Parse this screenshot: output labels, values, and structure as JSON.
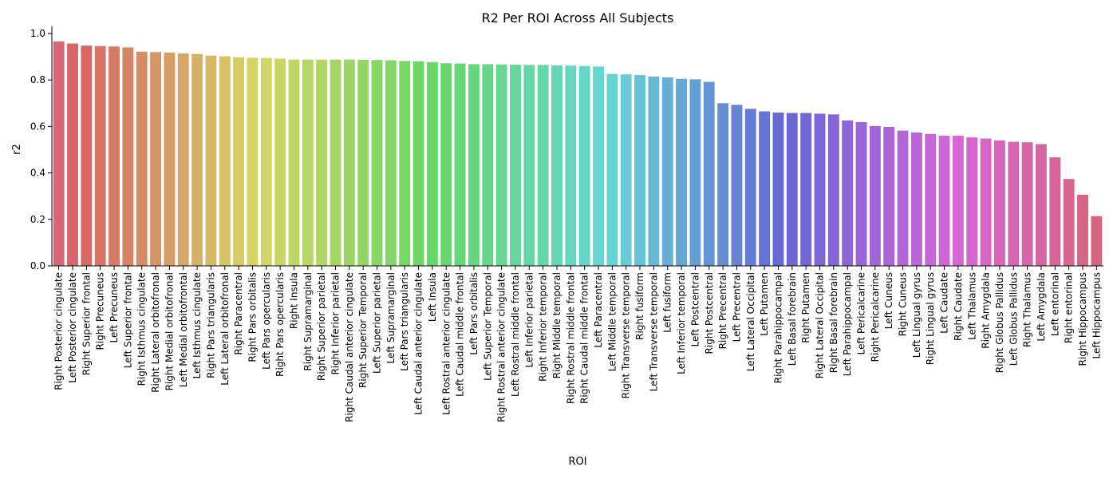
{
  "chart_data": {
    "type": "bar",
    "title": "R2 Per ROI Across All Subjects",
    "xlabel": "ROI",
    "ylabel": "r2",
    "ylim": [
      0.0,
      1.0
    ],
    "yticks": [
      "0.0",
      "0.2",
      "0.4",
      "0.6",
      "0.8",
      "1.0"
    ],
    "grid": false,
    "categories": [
      "Right Posterior cingulate",
      "Left Posterior cingulate",
      "Right Superior frontal",
      "Right Precuneus",
      "Left Precuneus",
      "Left Superior frontal",
      "Right Isthmus cingulate",
      "Right Lateral orbitofronal",
      "Right Medial orbitofronal",
      "Left Medial orbitofrontal",
      "Left Isthmus cingulate",
      "Right Pars triangularis",
      "Left Lateral orbitofronal",
      "Right Paracentral",
      "Right Pars orbitalis",
      "Left Pars opercularis",
      "Right Pars opercularis",
      "Right Insula",
      "Right Supramarginal",
      "Right Superior parietal",
      "Right Inferior parietal",
      "Right Caudal anterior cingulate",
      "Right Superior Temporal",
      "Left Superior parietal",
      "Left Supramarginal",
      "Left Pars triangularis",
      "Left Caudal anterior cingulate",
      "Left Insula",
      "Left Rostral anterior cingulate",
      "Left Caudal middle frontal",
      "Left Pars orbitalis",
      "Left Superior Temporal",
      "Right Rostral anterior cingulate",
      "Left Rostral middle frontal",
      "Left Inferior parietal",
      "Right Inferior temporal",
      "Right Middle temporal",
      "Right Rostral middle frontal",
      "Right Caudal middle frontal",
      "Left Paracentral",
      "Left Middle temporal",
      "Right Transverse temporal",
      "Right fusiform",
      "Left Transverse temporal",
      "Left fusiform",
      "Left Inferior temporal",
      "Left Postcentral",
      "Right Postcentral",
      "Right Precentral",
      "Left Precentral",
      "Left Lateral Occipital",
      "Left Putamen",
      "Right Parahippocampal",
      "Left Basal forebrain",
      "Right Putamen",
      "Right Lateral Occipital",
      "Right Basal forebrain",
      "Left Parahippocampal",
      "Left Pericalcarine",
      "Right Pericalcarine",
      "Left Cuneus",
      "Right Cuneus",
      "Left Lingual gyrus",
      "Right Lingual gyrus",
      "Left Caudate",
      "Right Caudate",
      "Left Thalamus",
      "Right Amygdala",
      "Right Globus Pallidus",
      "Left Globus Pallidus",
      "Right Thalamus",
      "Left Amygdala",
      "Left entorinal",
      "Right entorinal",
      "Right Hippocampus",
      "Left Hippocampus"
    ],
    "values": [
      0.966,
      0.957,
      0.948,
      0.946,
      0.944,
      0.94,
      0.922,
      0.92,
      0.918,
      0.915,
      0.912,
      0.905,
      0.902,
      0.898,
      0.896,
      0.895,
      0.892,
      0.888,
      0.888,
      0.888,
      0.888,
      0.888,
      0.887,
      0.886,
      0.885,
      0.882,
      0.88,
      0.877,
      0.872,
      0.871,
      0.868,
      0.868,
      0.867,
      0.866,
      0.865,
      0.865,
      0.863,
      0.862,
      0.86,
      0.858,
      0.826,
      0.824,
      0.821,
      0.815,
      0.811,
      0.805,
      0.803,
      0.792,
      0.7,
      0.693,
      0.676,
      0.665,
      0.66,
      0.658,
      0.658,
      0.655,
      0.652,
      0.626,
      0.619,
      0.602,
      0.598,
      0.582,
      0.574,
      0.568,
      0.56,
      0.56,
      0.553,
      0.548,
      0.54,
      0.534,
      0.532,
      0.524,
      0.467,
      0.374,
      0.306,
      0.214
    ]
  }
}
